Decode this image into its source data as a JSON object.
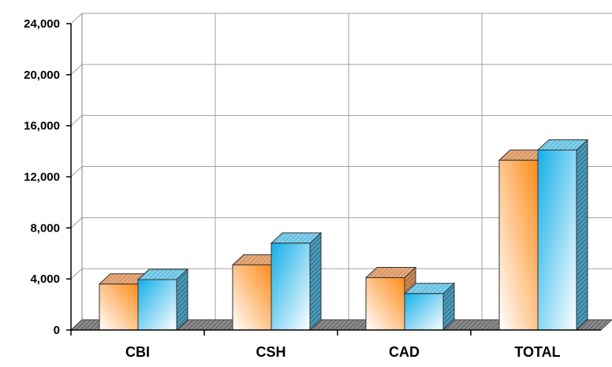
{
  "chart_data": {
    "type": "bar",
    "style": "3d-clustered-column",
    "categories": [
      "CBI",
      "CSH",
      "CAD",
      "TOTAL"
    ],
    "series": [
      {
        "values": [
          3600,
          5100,
          4100,
          13300
        ],
        "color": "#ff9a33"
      },
      {
        "values": [
          3950,
          6800,
          2850,
          14100
        ],
        "color": "#33b5e5"
      }
    ],
    "ylim": [
      0,
      24000
    ],
    "yticks": [
      "0",
      "4,000",
      "8,000",
      "12,000",
      "16,000",
      "20,000",
      "24,000"
    ],
    "ytick_values": [
      0,
      4000,
      8000,
      12000,
      16000,
      20000,
      24000
    ],
    "grid": true,
    "legend": "none",
    "title": "",
    "xlabel": "",
    "ylabel": ""
  }
}
